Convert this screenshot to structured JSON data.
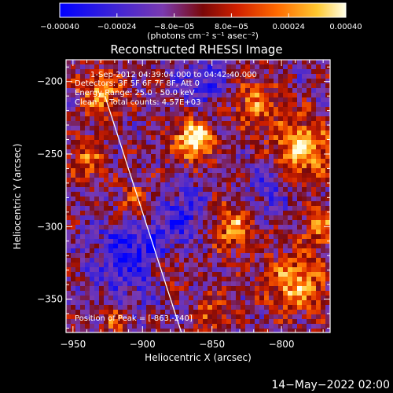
{
  "chart_data": {
    "type": "heatmap",
    "title": "Reconstructed RHESSI Image",
    "xlabel": "Heliocentric X (arcsec)",
    "ylabel": "Heliocentric Y (arcsec)",
    "xlim": [
      -955,
      -765
    ],
    "ylim": [
      -373,
      -185
    ],
    "x_ticks": [
      -950,
      -900,
      -850,
      -800
    ],
    "x_tick_labels": [
      "−950",
      "−900",
      "−850",
      "−800"
    ],
    "y_ticks": [
      -200,
      -250,
      -300,
      -350
    ],
    "y_tick_labels": [
      "−200",
      "−250",
      "−300",
      "−350"
    ],
    "colorbar": {
      "range": [
        -0.0004,
        0.0004
      ],
      "tick_values": [
        -0.0004,
        -0.00024,
        -8e-05,
        8e-05,
        0.00024,
        0.0004
      ],
      "tick_labels": [
        "−0.00040",
        "−0.00024",
        "−8.0e−05",
        "8.0e−05",
        "0.00024",
        "0.00040"
      ],
      "unit_label": "(photons cm⁻² s⁻¹ asec⁻²)",
      "colors": [
        "#0000ff",
        "#4a1fd0",
        "#7a3ab0",
        "#8d1010",
        "#e03000",
        "#ff7a00",
        "#ffd040",
        "#ffffe0"
      ]
    },
    "annotations": [
      "1-Sep-2012 04:39:04.000 to 04:42:40.000",
      "Detectors: 3F 5F 6F 7F 8F, Att 0",
      "Energy Range: 25.0 - 50.0 keV",
      "Clean     Total counts: 4.57E+03"
    ],
    "peak_label": "Position of Peak = [-863,-240]",
    "peak_position": [
      -863,
      -240
    ],
    "limb_line": [
      [
        -927,
        -210
      ],
      [
        -872,
        -373
      ]
    ],
    "hot_spots": [
      {
        "x": -863,
        "y": -240,
        "sigma": 10,
        "amp": 1.0
      },
      {
        "x": -785,
        "y": -245,
        "sigma": 14,
        "amp": 0.85
      },
      {
        "x": -790,
        "y": -340,
        "sigma": 14,
        "amp": 0.75
      },
      {
        "x": -930,
        "y": -208,
        "sigma": 11,
        "amp": 0.6
      },
      {
        "x": -905,
        "y": -285,
        "sigma": 10,
        "amp": 0.55
      },
      {
        "x": -835,
        "y": -300,
        "sigma": 12,
        "amp": 0.6
      },
      {
        "x": -820,
        "y": -215,
        "sigma": 12,
        "amp": 0.55
      },
      {
        "x": -940,
        "y": -255,
        "sigma": 9,
        "amp": 0.55
      },
      {
        "x": -880,
        "y": -330,
        "sigma": 10,
        "amp": 0.45
      },
      {
        "x": -850,
        "y": -360,
        "sigma": 9,
        "amp": 0.45
      },
      {
        "x": -920,
        "y": -365,
        "sigma": 8,
        "amp": 0.4
      },
      {
        "x": -770,
        "y": -300,
        "sigma": 10,
        "amp": 0.6
      }
    ],
    "cold_spots": [
      {
        "x": -905,
        "y": -320,
        "sigma": 22,
        "amp": 0.75
      },
      {
        "x": -870,
        "y": -290,
        "sigma": 14,
        "amp": 0.5
      },
      {
        "x": -855,
        "y": -200,
        "sigma": 14,
        "amp": 0.5
      },
      {
        "x": -810,
        "y": -275,
        "sigma": 12,
        "amp": 0.4
      }
    ]
  },
  "footer": {
    "timestamp": "14−May−2022 02:00"
  }
}
